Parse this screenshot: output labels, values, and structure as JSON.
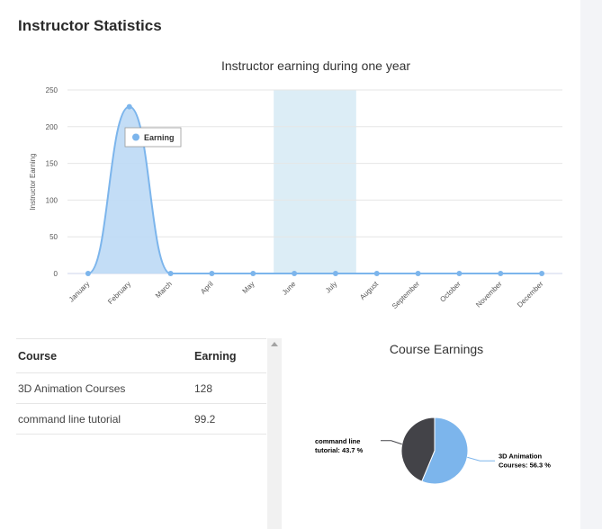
{
  "header": {
    "title": "Instructor Statistics"
  },
  "chart_data": [
    {
      "type": "area",
      "title": "Instructor earning during one year",
      "xlabel": "",
      "ylabel": "Instructor Earning",
      "ylim": [
        0,
        250
      ],
      "yticks": [
        0,
        50,
        100,
        150,
        200,
        250
      ],
      "grid": true,
      "legend": "inside-top-left",
      "categories": [
        "January",
        "February",
        "March",
        "April",
        "May",
        "June",
        "July",
        "August",
        "September",
        "October",
        "November",
        "December"
      ],
      "series": [
        {
          "name": "Earning",
          "values": [
            0,
            227.2,
            0,
            0,
            0,
            0,
            0,
            0,
            0,
            0,
            0,
            0
          ]
        }
      ],
      "highlight_band": [
        "June",
        "July"
      ]
    },
    {
      "type": "pie",
      "title": "Course Earnings",
      "slices": [
        {
          "label": "3D Animation Courses",
          "value": 56.3,
          "label_text": "3D Animation Courses: 56.3 %"
        },
        {
          "label": "command line tutorial",
          "value": 43.7,
          "label_text": "command line tutorial: 43.7 %"
        }
      ]
    }
  ],
  "table": {
    "headers": [
      "Course",
      "Earning"
    ],
    "rows": [
      [
        "3D Animation Courses",
        "128"
      ],
      [
        "command line tutorial",
        "99.2"
      ]
    ]
  },
  "colors": {
    "series": "#7cb5ec",
    "area_fill": "#bcd9f5",
    "band": "#dcedf6",
    "pie_3d": "#7cb5ec",
    "pie_cli": "#434348"
  }
}
